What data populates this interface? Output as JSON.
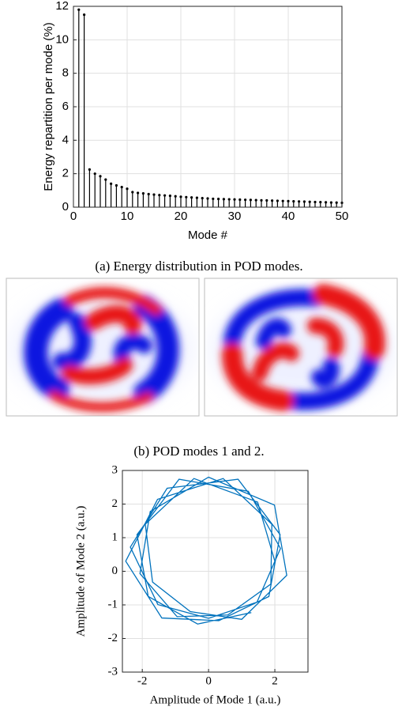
{
  "chart_data": [
    {
      "type": "stem",
      "xlabel": "Mode #",
      "ylabel": "Energy repartition per mode (%)",
      "color": "#000000",
      "x": [
        1,
        2,
        3,
        4,
        5,
        6,
        7,
        8,
        9,
        10,
        11,
        12,
        13,
        14,
        15,
        16,
        17,
        18,
        19,
        20,
        21,
        22,
        23,
        24,
        25,
        26,
        27,
        28,
        29,
        30,
        31,
        32,
        33,
        34,
        35,
        36,
        37,
        38,
        39,
        40,
        41,
        42,
        43,
        44,
        45,
        46,
        47,
        48,
        49,
        50
      ],
      "values": [
        11.8,
        11.5,
        2.25,
        2.0,
        1.85,
        1.65,
        1.4,
        1.3,
        1.2,
        1.1,
        0.9,
        0.85,
        0.82,
        0.78,
        0.75,
        0.72,
        0.7,
        0.68,
        0.65,
        0.62,
        0.6,
        0.58,
        0.56,
        0.54,
        0.52,
        0.5,
        0.49,
        0.48,
        0.47,
        0.46,
        0.45,
        0.44,
        0.43,
        0.42,
        0.41,
        0.4,
        0.39,
        0.38,
        0.37,
        0.36,
        0.35,
        0.34,
        0.33,
        0.32,
        0.31,
        0.3,
        0.29,
        0.28,
        0.27,
        0.26
      ],
      "xlim": [
        0,
        50
      ],
      "xticks": [
        0,
        10,
        20,
        30,
        40,
        50
      ],
      "ylim": [
        0,
        12
      ],
      "yticks": [
        0,
        2,
        4,
        6,
        8,
        10,
        12
      ],
      "grid": true
    },
    {
      "type": "line",
      "xlabel": "Amplitude of Mode 1 (a.u.)",
      "ylabel": "Amplitude of Mode 2 (a.u.)",
      "color": "#0072bd",
      "x": [
        2.0,
        1.48,
        -0.44,
        -1.91,
        -1.69,
        -0.55,
        1.0,
        2.36,
        1.99,
        0,
        -1.76,
        -2.07,
        -0.95,
        0.58,
        1.88,
        1.91,
        0.44,
        -1.54,
        -2.5,
        -1.41,
        0.31,
        1.82,
        2.16,
        0.89,
        -1.25,
        -2.36,
        -1.53,
        0,
        1.46,
        2.17,
        1.2,
        -0.89,
        -2.16,
        -1.82,
        -0.33,
        1.29
      ],
      "y": [
        0.3,
        2.06,
        2.76,
        1.4,
        -0.32,
        -1.2,
        -1.43,
        -0.12,
        1.97,
        2.8,
        1.78,
        -0.07,
        -1.35,
        -1.3,
        -0.38,
        1.4,
        2.76,
        2.14,
        0.3,
        -1.39,
        -1.47,
        -0.75,
        1.09,
        2.74,
        2.47,
        0.72,
        -0.99,
        -1.4,
        -0.92,
        0.68,
        2.38,
        2.74,
        1.09,
        -0.75,
        -1.57,
        -1.23
      ],
      "xlim": [
        -2.6,
        3
      ],
      "xticks": [
        -2,
        0,
        2
      ],
      "ylim": [
        -3,
        3
      ],
      "yticks": [
        -3,
        -2,
        -1,
        0,
        1,
        2,
        3
      ],
      "grid": true
    }
  ],
  "captions": [
    "(a) Energy distribution in POD modes.",
    "(b) POD modes 1 and 2."
  ]
}
